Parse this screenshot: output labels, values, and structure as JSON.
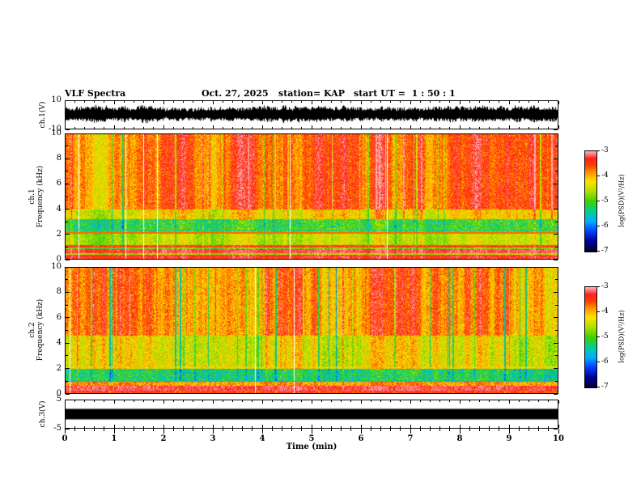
{
  "header": {
    "title": "VLF Spectra",
    "date": "Oct. 27, 2025",
    "station": "station= KAP",
    "start_ut": "start UT =  1 : 50 : 1"
  },
  "xaxis": {
    "label": "Time (min)",
    "lim": [
      0,
      10
    ],
    "major_ticks": [
      0,
      1,
      2,
      3,
      4,
      5,
      6,
      7,
      8,
      9,
      10
    ],
    "minor_step": 0.2
  },
  "colorbar": {
    "label": "log(PSD)(V²/Hz)",
    "lim": [
      -7,
      -3
    ],
    "ticks": [
      -3,
      -4,
      -5,
      -6,
      -7
    ],
    "stops": [
      [
        0.0,
        [
          0,
          0,
          48
        ]
      ],
      [
        0.1,
        [
          0,
          0,
          160
        ]
      ],
      [
        0.2,
        [
          0,
          64,
          255
        ]
      ],
      [
        0.3,
        [
          0,
          176,
          255
        ]
      ],
      [
        0.4,
        [
          0,
          208,
          144
        ]
      ],
      [
        0.5,
        [
          64,
          208,
          0
        ]
      ],
      [
        0.6,
        [
          176,
          224,
          0
        ]
      ],
      [
        0.7,
        [
          255,
          224,
          0
        ]
      ],
      [
        0.78,
        [
          255,
          160,
          0
        ]
      ],
      [
        0.86,
        [
          255,
          64,
          0
        ]
      ],
      [
        0.93,
        [
          255,
          32,
          32
        ]
      ],
      [
        1.0,
        [
          255,
          176,
          176
        ]
      ]
    ]
  },
  "chart_data": [
    {
      "id": "ch1v",
      "type": "line",
      "ylabel_lines": [
        "ch.1(V)"
      ],
      "ylim": [
        -10,
        10
      ],
      "ytick_major": [
        10,
        -10
      ],
      "ytick_minor": [
        0
      ],
      "description": "dense broadband noise waveform spanning roughly -10 to +10 V for the full 10 minutes"
    },
    {
      "id": "spec1",
      "type": "heatmap",
      "ylabel_lines": [
        "ch.1",
        "Frequency (kHz)"
      ],
      "ylim": [
        0,
        10
      ],
      "ytick_major": [
        0,
        2,
        4,
        6,
        8,
        10
      ],
      "ytick_minor": [
        1,
        3,
        5,
        7,
        9
      ],
      "gap_prob": 0.008,
      "bands": [
        {
          "f": [
            0.0,
            0.35
          ],
          "v": -3.3,
          "n": 0.25,
          "s": 0.2
        },
        {
          "f": [
            0.35,
            0.5
          ],
          "v": -4.6,
          "n": 0.3,
          "s": 0.3
        },
        {
          "f": [
            0.5,
            0.8
          ],
          "v": -3.2,
          "n": 0.2,
          "s": 0.2
        },
        {
          "f": [
            0.8,
            0.95
          ],
          "v": -4.8,
          "n": 0.4,
          "s": 0.3
        },
        {
          "f": [
            0.95,
            1.15
          ],
          "v": -3.4,
          "n": 0.3,
          "s": 0.2
        },
        {
          "f": [
            1.15,
            2.05
          ],
          "v": -4.5,
          "n": 0.35,
          "s": 0.5
        },
        {
          "f": [
            2.05,
            2.2
          ],
          "v": -3.8,
          "n": 0.2,
          "s": 0.2
        },
        {
          "f": [
            2.2,
            2.45
          ],
          "v": -4.9,
          "n": 0.3,
          "s": 0.3
        },
        {
          "f": [
            2.45,
            3.2
          ],
          "v": -5.1,
          "n": 0.55,
          "s": 0.4
        },
        {
          "f": [
            3.2,
            4.0
          ],
          "v": -4.2,
          "n": 0.4,
          "s": 0.7
        },
        {
          "f": [
            4.0,
            10.01
          ],
          "v": -3.6,
          "n": 0.35,
          "s": 0.9
        }
      ],
      "lines": [
        {
          "f": 2.12,
          "v": -3.7,
          "px": 2
        },
        {
          "f": 2.32,
          "v": -5.6,
          "px": 1
        }
      ],
      "description": "red/orange continuum 4-10 kHz with dark vertical dropouts, yellow-green 1.2-4 kHz, cyan-green speckled band 2.5-3.2 kHz, pink intense bands below 1.2 kHz"
    },
    {
      "id": "spec2",
      "type": "heatmap",
      "ylabel_lines": [
        "ch.2",
        "Frequency (kHz)"
      ],
      "ylim": [
        0,
        10
      ],
      "ytick_major": [
        0,
        2,
        4,
        6,
        8,
        10
      ],
      "ytick_minor": [
        1,
        3,
        5,
        7,
        9
      ],
      "gap_prob": 0.004,
      "bands": [
        {
          "f": [
            0.0,
            0.25
          ],
          "v": -3.5,
          "n": 0.3,
          "s": 0.3
        },
        {
          "f": [
            0.25,
            0.6
          ],
          "v": -3.2,
          "n": 0.2,
          "s": 0.2
        },
        {
          "f": [
            0.6,
            0.95
          ],
          "v": -3.9,
          "n": 0.4,
          "s": 0.4
        },
        {
          "f": [
            0.95,
            1.95
          ],
          "v": -5.3,
          "n": 0.55,
          "s": 0.4
        },
        {
          "f": [
            1.95,
            2.15
          ],
          "v": -4.2,
          "n": 0.3,
          "s": 0.4
        },
        {
          "f": [
            2.15,
            4.6
          ],
          "v": -4.4,
          "n": 0.45,
          "s": 0.8
        },
        {
          "f": [
            4.6,
            10.01
          ],
          "v": -3.9,
          "n": 0.4,
          "s": 1.1
        }
      ],
      "lines": [
        {
          "f": 1.0,
          "v": -5.8,
          "px": 1
        }
      ],
      "description": "orange/yellow continuum above 2 kHz crossed by many red vertical streaks, cyan band 1-2 kHz, pink/red intense bands below 1 kHz"
    },
    {
      "id": "ch3v",
      "type": "line",
      "ylabel_lines": [
        "ch.3(V)"
      ],
      "ylim": [
        -5,
        5
      ],
      "ytick_major": [
        5,
        -5
      ],
      "ytick_minor": [
        0
      ],
      "bar": [
        -1.9,
        1.9
      ],
      "description": "saturated constant-amplitude signal rendered as a solid black bar around 0 V"
    }
  ]
}
